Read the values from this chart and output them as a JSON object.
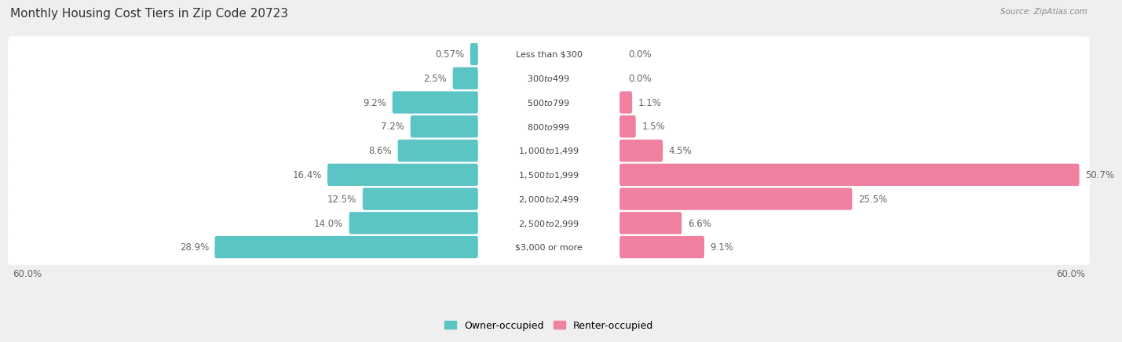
{
  "title": "Monthly Housing Cost Tiers in Zip Code 20723",
  "source": "Source: ZipAtlas.com",
  "categories": [
    "Less than $300",
    "$300 to $499",
    "$500 to $799",
    "$800 to $999",
    "$1,000 to $1,499",
    "$1,500 to $1,999",
    "$2,000 to $2,499",
    "$2,500 to $2,999",
    "$3,000 or more"
  ],
  "owner_values": [
    0.57,
    2.5,
    9.2,
    7.2,
    8.6,
    16.4,
    12.5,
    14.0,
    28.9
  ],
  "renter_values": [
    0.0,
    0.0,
    1.1,
    1.5,
    4.5,
    50.7,
    25.5,
    6.6,
    9.1
  ],
  "owner_labels": [
    "0.57%",
    "2.5%",
    "9.2%",
    "7.2%",
    "8.6%",
    "16.4%",
    "12.5%",
    "14.0%",
    "28.9%"
  ],
  "renter_labels": [
    "0.0%",
    "0.0%",
    "1.1%",
    "1.5%",
    "4.5%",
    "50.7%",
    "25.5%",
    "6.6%",
    "9.1%"
  ],
  "owner_color": "#5BC4C4",
  "renter_color": "#F080A0",
  "axis_max": 60.0,
  "background_color": "#EFEFEF",
  "row_bg_color": "#F7F7F7",
  "title_fontsize": 11,
  "label_fontsize": 8.5,
  "category_fontsize": 8,
  "source_fontsize": 7.5,
  "legend_fontsize": 9
}
